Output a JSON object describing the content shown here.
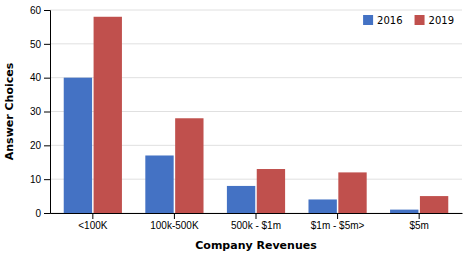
{
  "chart_data": {
    "type": "bar",
    "categories": [
      "<100K",
      "100k-500K",
      "500k - $1m",
      "$1m - $5m>",
      "$5m"
    ],
    "series": [
      {
        "name": "2016",
        "color": "#4472C4",
        "values": [
          40,
          17,
          8,
          4,
          1
        ]
      },
      {
        "name": "2019",
        "color": "#C0504D",
        "values": [
          58,
          28,
          13,
          12,
          5
        ]
      }
    ],
    "xlabel": "Company Revenues",
    "ylabel": "Answer Choices",
    "ylim": [
      0,
      60
    ],
    "yticks": [
      0,
      10,
      20,
      30,
      40,
      50,
      60
    ],
    "grid": true,
    "legend": "upper right"
  }
}
